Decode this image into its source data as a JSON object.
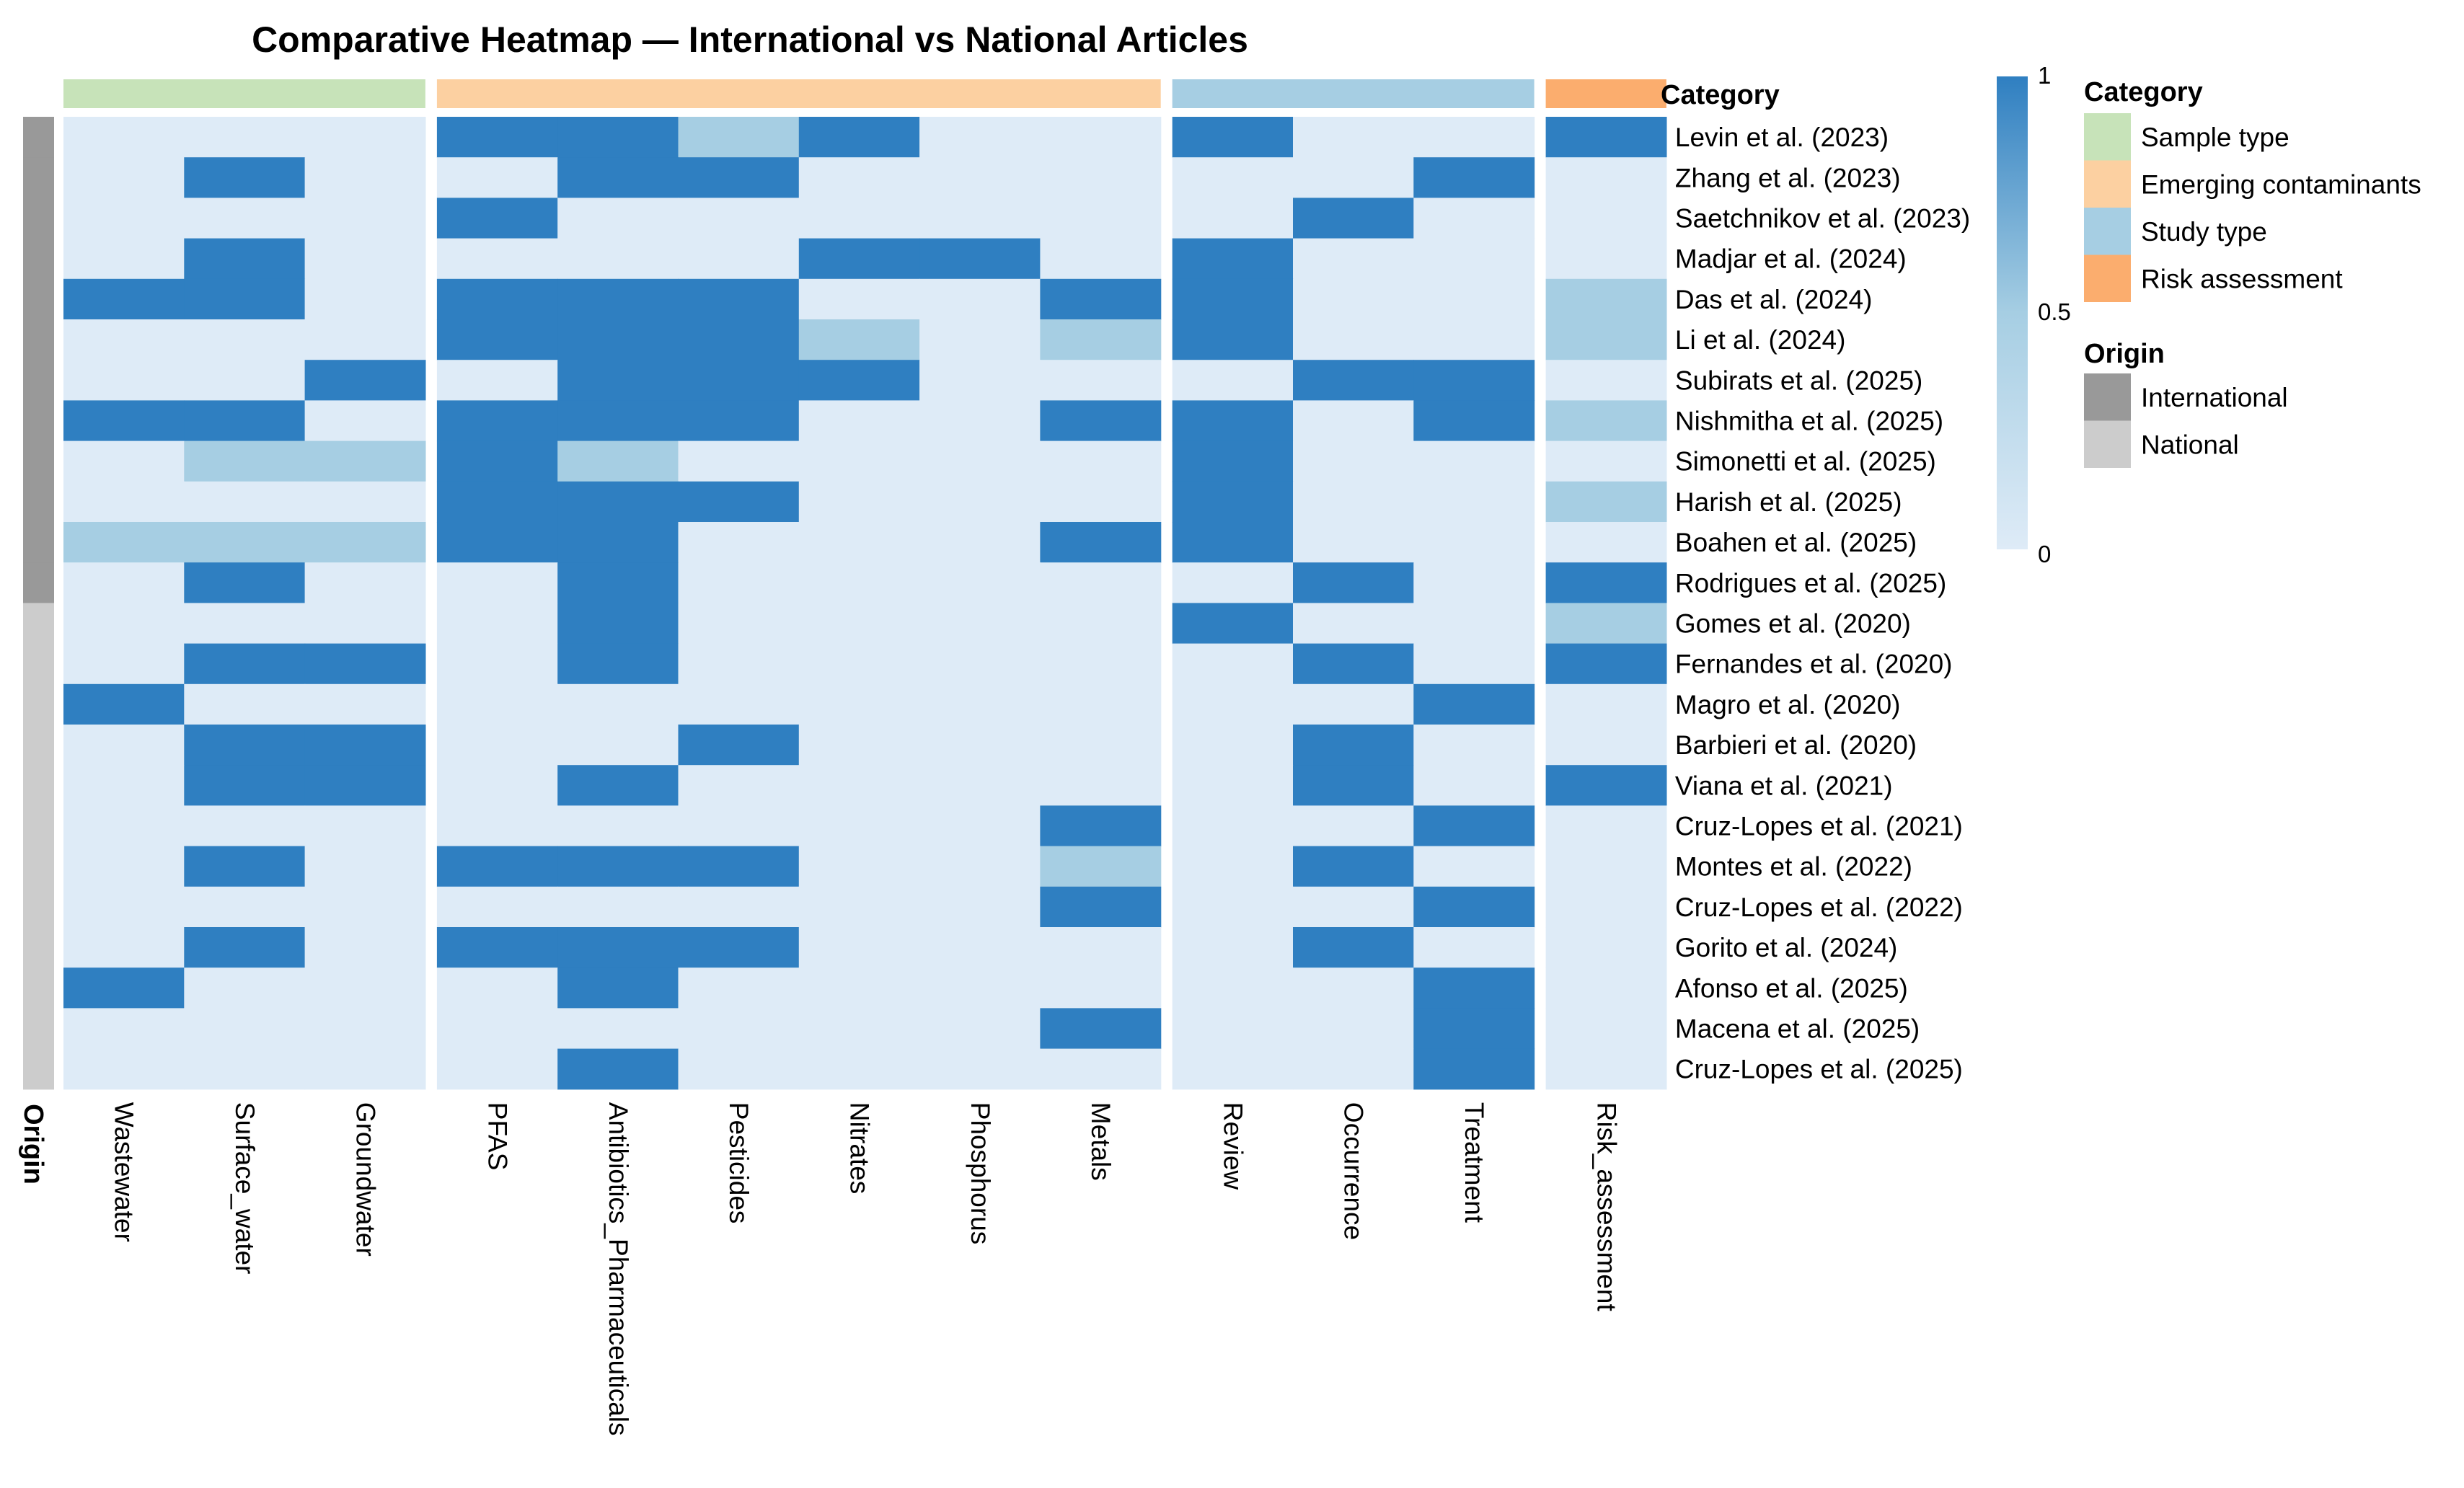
{
  "chart_data": {
    "type": "heatmap",
    "title": "Comparative Heatmap — International vs National Articles",
    "origin_axis_label": "Origin",
    "category_header": "Category",
    "colors": {
      "low": "#deebf7",
      "mid": "#a6cee3",
      "high": "#2f7fc1",
      "international": "#999999",
      "national": "#cccccc"
    },
    "categories": [
      {
        "name": "Sample type",
        "color": "#c7e3b9",
        "columns": [
          "Wastewater",
          "Surface_water",
          "Groundwater"
        ]
      },
      {
        "name": "Emerging contaminants",
        "color": "#fcd0a1",
        "columns": [
          "PFAS",
          "Antibiotics_Pharmaceuticals",
          "Pesticides",
          "Nitrates",
          "Phosphorus",
          "Metals"
        ]
      },
      {
        "name": "Study type",
        "color": "#a6cee3",
        "columns": [
          "Review",
          "Occurrence",
          "Treatment"
        ]
      },
      {
        "name": "Risk assessment",
        "color": "#fbad6e",
        "columns": [
          "Risk_assessment"
        ]
      }
    ],
    "rows": [
      {
        "label": "Levin et al. (2023)",
        "origin": "International",
        "values": [
          0,
          0,
          0,
          1,
          1,
          0.5,
          1,
          0,
          0,
          1,
          0,
          0,
          1
        ]
      },
      {
        "label": "Zhang et al. (2023)",
        "origin": "International",
        "values": [
          0,
          1,
          0,
          0,
          1,
          1,
          0,
          0,
          0,
          0,
          0,
          1,
          0
        ]
      },
      {
        "label": "Saetchnikov et al. (2023)",
        "origin": "International",
        "values": [
          0,
          0,
          0,
          1,
          0,
          0,
          0,
          0,
          0,
          0,
          1,
          0,
          0
        ]
      },
      {
        "label": "Madjar et al. (2024)",
        "origin": "International",
        "values": [
          0,
          1,
          0,
          0,
          0,
          0,
          1,
          1,
          0,
          1,
          0,
          0,
          0
        ]
      },
      {
        "label": "Das et al. (2024)",
        "origin": "International",
        "values": [
          1,
          1,
          0,
          1,
          1,
          1,
          0,
          0,
          1,
          1,
          0,
          0,
          0.5
        ]
      },
      {
        "label": "Li et al. (2024)",
        "origin": "International",
        "values": [
          0,
          0,
          0,
          1,
          1,
          1,
          0.5,
          0,
          0.5,
          1,
          0,
          0,
          0.5
        ]
      },
      {
        "label": "Subirats et al. (2025)",
        "origin": "International",
        "values": [
          0,
          0,
          1,
          0,
          1,
          1,
          1,
          0,
          0,
          0,
          1,
          1,
          0
        ]
      },
      {
        "label": "Nishmitha et al. (2025)",
        "origin": "International",
        "values": [
          1,
          1,
          0,
          1,
          1,
          1,
          0,
          0,
          1,
          1,
          0,
          1,
          0.5
        ]
      },
      {
        "label": "Simonetti et al. (2025)",
        "origin": "International",
        "values": [
          0,
          0.5,
          0.5,
          1,
          0.5,
          0,
          0,
          0,
          0,
          1,
          0,
          0,
          0
        ]
      },
      {
        "label": "Harish et al. (2025)",
        "origin": "International",
        "values": [
          0,
          0,
          0,
          1,
          1,
          1,
          0,
          0,
          0,
          1,
          0,
          0,
          0.5
        ]
      },
      {
        "label": "Boahen et al. (2025)",
        "origin": "International",
        "values": [
          0.5,
          0.5,
          0.5,
          1,
          1,
          0,
          0,
          0,
          1,
          1,
          0,
          0,
          0
        ]
      },
      {
        "label": "Rodrigues et al. (2025)",
        "origin": "International",
        "values": [
          0,
          1,
          0,
          0,
          1,
          0,
          0,
          0,
          0,
          0,
          1,
          0,
          1
        ]
      },
      {
        "label": "Gomes et al. (2020)",
        "origin": "National",
        "values": [
          0,
          0,
          0,
          0,
          1,
          0,
          0,
          0,
          0,
          1,
          0,
          0,
          0.5
        ]
      },
      {
        "label": "Fernandes et al. (2020)",
        "origin": "National",
        "values": [
          0,
          1,
          1,
          0,
          1,
          0,
          0,
          0,
          0,
          0,
          1,
          0,
          1
        ]
      },
      {
        "label": "Magro et al. (2020)",
        "origin": "National",
        "values": [
          1,
          0,
          0,
          0,
          0,
          0,
          0,
          0,
          0,
          0,
          0,
          1,
          0
        ]
      },
      {
        "label": "Barbieri et al. (2020)",
        "origin": "National",
        "values": [
          0,
          1,
          1,
          0,
          0,
          1,
          0,
          0,
          0,
          0,
          1,
          0,
          0
        ]
      },
      {
        "label": "Viana et al. (2021)",
        "origin": "National",
        "values": [
          0,
          1,
          1,
          0,
          1,
          0,
          0,
          0,
          0,
          0,
          1,
          0,
          1
        ]
      },
      {
        "label": "Cruz-Lopes et al. (2021)",
        "origin": "National",
        "values": [
          0,
          0,
          0,
          0,
          0,
          0,
          0,
          0,
          1,
          0,
          0,
          1,
          0
        ]
      },
      {
        "label": "Montes et al. (2022)",
        "origin": "National",
        "values": [
          0,
          1,
          0,
          1,
          1,
          1,
          0,
          0,
          0.5,
          0,
          1,
          0,
          0
        ]
      },
      {
        "label": "Cruz-Lopes et al. (2022)",
        "origin": "National",
        "values": [
          0,
          0,
          0,
          0,
          0,
          0,
          0,
          0,
          1,
          0,
          0,
          1,
          0
        ]
      },
      {
        "label": "Gorito et al. (2024)",
        "origin": "National",
        "values": [
          0,
          1,
          0,
          1,
          1,
          1,
          0,
          0,
          0,
          0,
          1,
          0,
          0
        ]
      },
      {
        "label": "Afonso et al. (2025)",
        "origin": "National",
        "values": [
          1,
          0,
          0,
          0,
          1,
          0,
          0,
          0,
          0,
          0,
          0,
          1,
          0
        ]
      },
      {
        "label": "Macena et al. (2025)",
        "origin": "National",
        "values": [
          0,
          0,
          0,
          0,
          0,
          0,
          0,
          0,
          1,
          0,
          0,
          1,
          0
        ]
      },
      {
        "label": "Cruz-Lopes et al. (2025)",
        "origin": "National",
        "values": [
          0,
          0,
          0,
          0,
          1,
          0,
          0,
          0,
          0,
          0,
          0,
          1,
          0
        ]
      }
    ],
    "color_scale": {
      "min": 0,
      "max": 1,
      "ticks": [
        "1",
        "0.5",
        "0"
      ]
    },
    "legend": {
      "category_title": "Category",
      "category_items": [
        "Sample type",
        "Emerging contaminants",
        "Study type",
        "Risk assessment"
      ],
      "origin_title": "Origin",
      "origin_items": [
        "International",
        "National"
      ]
    }
  }
}
